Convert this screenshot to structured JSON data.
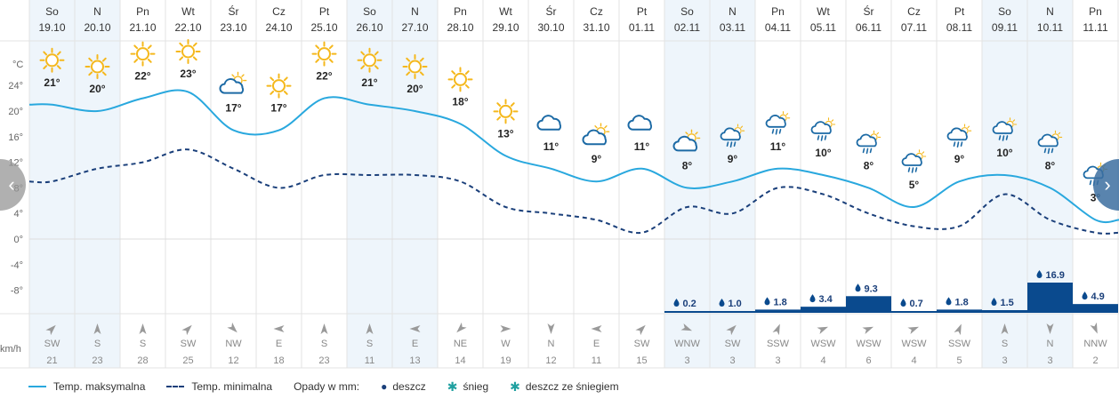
{
  "chart_data": {
    "type": "line",
    "days": [
      {
        "name": "So",
        "date": "19.10",
        "max": 21,
        "min": 9,
        "icon": "sun-icon",
        "precip": null,
        "wind_dir": "SW",
        "wind_speed": 21,
        "shade": true
      },
      {
        "name": "N",
        "date": "20.10",
        "max": 20,
        "min": 11,
        "icon": "sun-icon",
        "precip": null,
        "wind_dir": "S",
        "wind_speed": 23,
        "shade": true
      },
      {
        "name": "Pn",
        "date": "21.10",
        "max": 22,
        "min": 12,
        "icon": "sun-icon",
        "precip": null,
        "wind_dir": "S",
        "wind_speed": 28,
        "shade": false
      },
      {
        "name": "Wt",
        "date": "22.10",
        "max": 23,
        "min": 14,
        "icon": "sun-icon",
        "precip": null,
        "wind_dir": "SW",
        "wind_speed": 25,
        "shade": false
      },
      {
        "name": "Śr",
        "date": "23.10",
        "max": 17,
        "min": 11,
        "icon": "partly-cloudy-icon",
        "precip": null,
        "wind_dir": "NW",
        "wind_speed": 12,
        "shade": false
      },
      {
        "name": "Cz",
        "date": "24.10",
        "max": 17,
        "min": 8,
        "icon": "sun-icon",
        "precip": null,
        "wind_dir": "E",
        "wind_speed": 18,
        "shade": false
      },
      {
        "name": "Pt",
        "date": "25.10",
        "max": 22,
        "min": 10,
        "icon": "sun-icon",
        "precip": null,
        "wind_dir": "S",
        "wind_speed": 23,
        "shade": false
      },
      {
        "name": "So",
        "date": "26.10",
        "max": 21,
        "min": 10,
        "icon": "sun-icon",
        "precip": null,
        "wind_dir": "S",
        "wind_speed": 11,
        "shade": true
      },
      {
        "name": "N",
        "date": "27.10",
        "max": 20,
        "min": 10,
        "icon": "sun-icon",
        "precip": null,
        "wind_dir": "E",
        "wind_speed": 13,
        "shade": true
      },
      {
        "name": "Pn",
        "date": "28.10",
        "max": 18,
        "min": 9,
        "icon": "sun-icon",
        "precip": null,
        "wind_dir": "NE",
        "wind_speed": 14,
        "shade": false
      },
      {
        "name": "Wt",
        "date": "29.10",
        "max": 13,
        "min": 5,
        "icon": "sun-icon",
        "precip": null,
        "wind_dir": "W",
        "wind_speed": 19,
        "shade": false
      },
      {
        "name": "Śr",
        "date": "30.10",
        "max": 11,
        "min": 4,
        "icon": "cloud-icon",
        "precip": null,
        "wind_dir": "N",
        "wind_speed": 12,
        "shade": false
      },
      {
        "name": "Cz",
        "date": "31.10",
        "max": 9,
        "min": 3,
        "icon": "partly-cloudy-icon",
        "precip": null,
        "wind_dir": "E",
        "wind_speed": 11,
        "shade": false
      },
      {
        "name": "Pt",
        "date": "01.11",
        "max": 11,
        "min": 1,
        "icon": "cloud-icon",
        "precip": null,
        "wind_dir": "SW",
        "wind_speed": 15,
        "shade": false
      },
      {
        "name": "So",
        "date": "02.11",
        "max": 8,
        "min": 5,
        "icon": "partly-cloudy-icon",
        "precip": 0.2,
        "precip_label": "0.2",
        "wind_dir": "WNW",
        "wind_speed": 3,
        "shade": true
      },
      {
        "name": "N",
        "date": "03.11",
        "max": 9,
        "min": 4,
        "icon": "rain-icon",
        "precip": 1.0,
        "precip_label": "1.0",
        "wind_dir": "SW",
        "wind_speed": 3,
        "shade": true
      },
      {
        "name": "Pn",
        "date": "04.11",
        "max": 11,
        "min": 8,
        "icon": "rain-icon",
        "precip": 1.8,
        "precip_label": "1.8",
        "wind_dir": "SSW",
        "wind_speed": 3,
        "shade": false
      },
      {
        "name": "Wt",
        "date": "05.11",
        "max": 10,
        "min": 7,
        "icon": "rain-icon",
        "precip": 3.4,
        "precip_label": "3.4",
        "wind_dir": "WSW",
        "wind_speed": 4,
        "shade": false
      },
      {
        "name": "Śr",
        "date": "06.11",
        "max": 8,
        "min": 4,
        "icon": "rain-icon",
        "precip": 9.3,
        "precip_label": "9.3",
        "wind_dir": "WSW",
        "wind_speed": 6,
        "shade": false
      },
      {
        "name": "Cz",
        "date": "07.11",
        "max": 5,
        "min": 2,
        "icon": "rain-icon",
        "precip": 0.7,
        "precip_label": "0.7",
        "wind_dir": "WSW",
        "wind_speed": 4,
        "shade": false
      },
      {
        "name": "Pt",
        "date": "08.11",
        "max": 9,
        "min": 2,
        "icon": "rain-icon",
        "precip": 1.8,
        "precip_label": "1.8",
        "wind_dir": "SSW",
        "wind_speed": 5,
        "shade": false
      },
      {
        "name": "So",
        "date": "09.11",
        "max": 10,
        "min": 7,
        "icon": "rain-icon",
        "precip": 1.5,
        "precip_label": "1.5",
        "wind_dir": "S",
        "wind_speed": 3,
        "shade": true
      },
      {
        "name": "N",
        "date": "10.11",
        "max": 8,
        "min": 3,
        "icon": "rain-icon",
        "precip": 16.9,
        "precip_label": "16.9",
        "wind_dir": "N",
        "wind_speed": 3,
        "shade": true
      },
      {
        "name": "Pn",
        "date": "11.11",
        "max": 3,
        "min": 1,
        "icon": "rain-icon",
        "precip": 4.9,
        "precip_label": "4.9",
        "wind_dir": "NNW",
        "wind_speed": 2,
        "shade": false
      }
    ],
    "y_axis": {
      "unit": "°C",
      "ticks": [
        24,
        20,
        16,
        12,
        8,
        4,
        0,
        -4,
        -8
      ],
      "tick_labels": [
        "24°",
        "20°",
        "16°",
        "12°",
        "8°",
        "4°",
        "0°",
        "-4°",
        "-8°"
      ]
    },
    "wind_unit": "km/h",
    "colors": {
      "max_line": "#29a8de",
      "min_line": "#1a3f7a",
      "precip_bar": "#0a4a8e",
      "weekend_bg": "#eef5fb",
      "sun": "#f5b81c",
      "cloud": "#1c6aa5"
    }
  },
  "legend": {
    "max_label": "Temp. maksymalna",
    "min_label": "Temp. minimalna",
    "precip_title": "Opady w mm:",
    "rain_label": "deszcz",
    "snow_label": "śnieg",
    "mix_label": "deszcz ze śniegiem"
  },
  "nav": {
    "prev": "‹",
    "next": "›"
  }
}
